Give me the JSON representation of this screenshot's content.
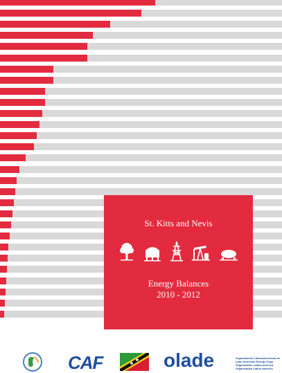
{
  "cover": {
    "country": "St. Kitts and Nevis",
    "title": "Energy Balances",
    "years": "2010 - 2012",
    "colors": {
      "accent_red": "#e32b3f",
      "bar_gray": "#d9d9d9",
      "logo_blue": "#1f4fa0"
    },
    "icons": [
      "tree-icon",
      "storage-tank-icon",
      "power-tower-icon",
      "oil-pump-icon",
      "tanker-icon"
    ]
  },
  "decoration": {
    "bar_fill_fractions": [
      0.55,
      0.5,
      0.39,
      0.33,
      0.31,
      0.31,
      0.19,
      0.19,
      0.16,
      0.16,
      0.15,
      0.14,
      0.13,
      0.12,
      0.09,
      0.07,
      0.06,
      0.055,
      0.05,
      0.045,
      0.04,
      0.035,
      0.03,
      0.028,
      0.025,
      0.022,
      0.02,
      0.018,
      0.015
    ]
  },
  "logos": {
    "caf": "CAF",
    "olade": "olade",
    "org_lines": [
      "Organización Latinoamericana de",
      "Latin American Energy Orga",
      "Organisation Latino-america",
      "Organização Latino-america"
    ]
  }
}
